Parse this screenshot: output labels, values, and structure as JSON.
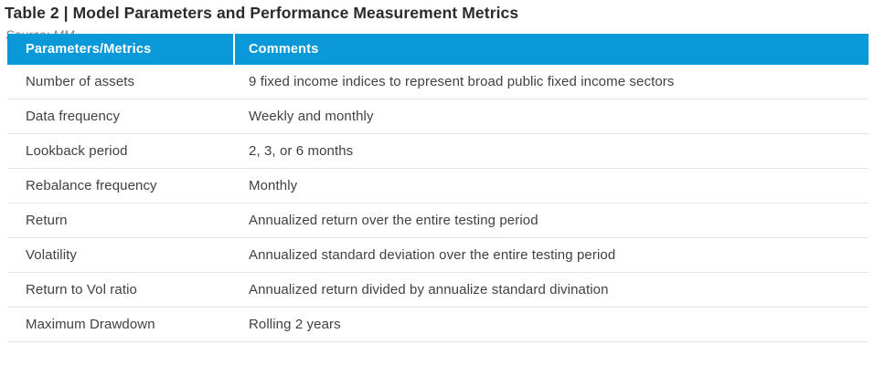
{
  "title": "Table 2 | Model Parameters and Performance Measurement Metrics",
  "table": {
    "columns": [
      "Parameters/Metrics",
      "Comments"
    ],
    "rows": [
      {
        "parameter": "Number of assets",
        "comment": "9 fixed income indices to represent broad public fixed income sectors"
      },
      {
        "parameter": "Data frequency",
        "comment": "Weekly and monthly"
      },
      {
        "parameter": "Lookback period",
        "comment": "2, 3, or 6 months"
      },
      {
        "parameter": "Rebalance frequency",
        "comment": "Monthly"
      },
      {
        "parameter": "Return",
        "comment": "Annualized return over the entire testing period"
      },
      {
        "parameter": "Volatility",
        "comment": "Annualized standard deviation over the entire testing period"
      },
      {
        "parameter": "Return to Vol ratio",
        "comment": "Annualized return divided by annualize standard divination"
      },
      {
        "parameter": "Maximum Drawdown",
        "comment": "Rolling 2 years"
      }
    ]
  },
  "source": "Source: MM",
  "colors": {
    "header_bg": "#0999d9",
    "header_text": "#ffffff",
    "title_text": "#2b2b2e",
    "body_text": "#414042",
    "row_border": "#e2e3e4",
    "source_text": "#7d7f83"
  }
}
